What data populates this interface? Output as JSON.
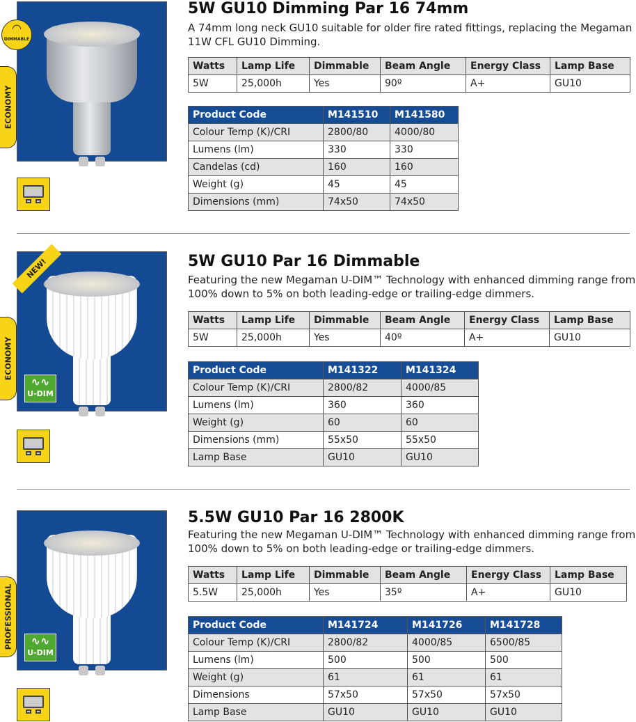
{
  "products": [
    {
      "title": "5W GU10 Dimming Par 16 74mm",
      "description": "A 74mm long neck GU10 suitable for older fire rated fittings, replacing the Megaman 11W CFL GU10 Dimming.",
      "badge": "DIMMABLE",
      "category": "ECONOMY",
      "spec_headers": [
        "Watts",
        "Lamp Life",
        "Dimmable",
        "Beam Angle",
        "Energy Class",
        "Lamp Base"
      ],
      "spec_values": [
        "5W",
        "25,000h",
        "Yes",
        "90º",
        "A+",
        "GU10"
      ],
      "product_rows": [
        [
          "Product Code",
          "M141510",
          "M141580"
        ],
        [
          "Colour Temp (K)/CRI",
          "2800/80",
          "4000/80"
        ],
        [
          "Lumens (lm)",
          "330",
          "330"
        ],
        [
          "Candelas (cd)",
          "160",
          "160"
        ],
        [
          "Weight (g)",
          "45",
          "45"
        ],
        [
          "Dimensions (mm)",
          "74x50",
          "74x50"
        ]
      ]
    },
    {
      "title": "5W GU10 Par 16 Dimmable",
      "description": "Featuring the new Megaman U-DIM™ Technology with enhanced dimming range from 100% down to 5% on both leading-edge or trailing-edge dimmers.",
      "badge": "NEW!",
      "category": "ECONOMY",
      "udim": "U-DIM",
      "spec_headers": [
        "Watts",
        "Lamp Life",
        "Dimmable",
        "Beam Angle",
        "Energy Class",
        "Lamp Base"
      ],
      "spec_values": [
        "5W",
        "25,000h",
        "Yes",
        "40º",
        "A+",
        "GU10"
      ],
      "product_rows": [
        [
          "Product Code",
          "M141322",
          "M141324"
        ],
        [
          "Colour Temp (K)/CRI",
          "2800/82",
          "4000/85"
        ],
        [
          "Lumens (lm)",
          "360",
          "360"
        ],
        [
          "Weight (g)",
          "60",
          "60"
        ],
        [
          "Dimensions (mm)",
          "55x50",
          "55x50"
        ],
        [
          "Lamp Base",
          "GU10",
          "GU10"
        ]
      ]
    },
    {
      "title": "5.5W GU10 Par 16 2800K",
      "description": "Featuring the new Megaman U-DIM™ Technology with enhanced dimming range from 100% down to 5% on both leading-edge or trailing-edge dimmers.",
      "category": "PROFESSIONAL",
      "udim": "U-DIM",
      "spec_headers": [
        "Watts",
        "Lamp Life",
        "Dimmable",
        "Beam Angle",
        "Energy Class",
        "Lamp Base"
      ],
      "spec_values": [
        "5.5W",
        "25,000h",
        "Yes",
        "35º",
        "A+",
        "GU10"
      ],
      "product_rows": [
        [
          "Product Code",
          "M141724",
          "M141726",
          "M141728"
        ],
        [
          "Colour Temp (K)/CRI",
          "2800/82",
          "4000/85",
          "6500/85"
        ],
        [
          "Lumens (lm)",
          "500",
          "500",
          "500"
        ],
        [
          "Weight (g)",
          "61",
          "61",
          "61"
        ],
        [
          "Dimensions",
          "57x50",
          "57x50",
          "57x50"
        ],
        [
          "Lamp Base",
          "GU10",
          "GU10",
          "GU10"
        ]
      ]
    }
  ],
  "colors": {
    "header_blue": "#164c96",
    "image_blue": "#144a93",
    "tag_yellow": "#f7d417",
    "udim_green": "#4fa82f",
    "row_grey": "#e3e3e3"
  }
}
